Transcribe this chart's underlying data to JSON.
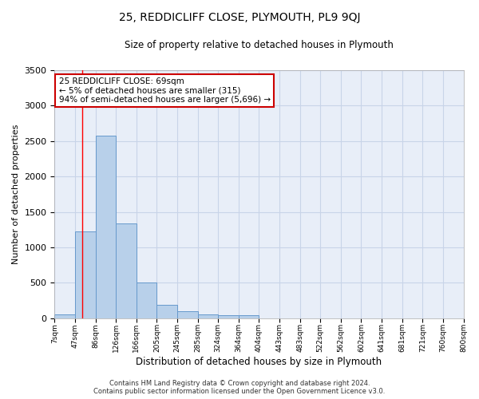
{
  "title": "25, REDDICLIFF CLOSE, PLYMOUTH, PL9 9QJ",
  "subtitle": "Size of property relative to detached houses in Plymouth",
  "xlabel": "Distribution of detached houses by size in Plymouth",
  "ylabel": "Number of detached properties",
  "footer_line1": "Contains HM Land Registry data © Crown copyright and database right 2024.",
  "footer_line2": "Contains public sector information licensed under the Open Government Licence v3.0.",
  "bin_labels": [
    "7sqm",
    "47sqm",
    "86sqm",
    "126sqm",
    "166sqm",
    "205sqm",
    "245sqm",
    "285sqm",
    "324sqm",
    "364sqm",
    "404sqm",
    "443sqm",
    "483sqm",
    "522sqm",
    "562sqm",
    "602sqm",
    "641sqm",
    "681sqm",
    "721sqm",
    "760sqm",
    "800sqm"
  ],
  "bar_values": [
    50,
    1220,
    2580,
    1340,
    500,
    190,
    100,
    50,
    40,
    40,
    0,
    0,
    0,
    0,
    0,
    0,
    0,
    0,
    0,
    0
  ],
  "bar_color": "#b8d0ea",
  "bar_edge_color": "#6699cc",
  "grid_color": "#c8d4e8",
  "background_color": "#e8eef8",
  "red_line_x": 1.35,
  "annotation_text": "25 REDDICLIFF CLOSE: 69sqm\n← 5% of detached houses are smaller (315)\n94% of semi-detached houses are larger (5,696) →",
  "annotation_box_color": "#ffffff",
  "annotation_border_color": "#cc0000",
  "ylim": [
    0,
    3500
  ],
  "yticks": [
    0,
    500,
    1000,
    1500,
    2000,
    2500,
    3000,
    3500
  ]
}
